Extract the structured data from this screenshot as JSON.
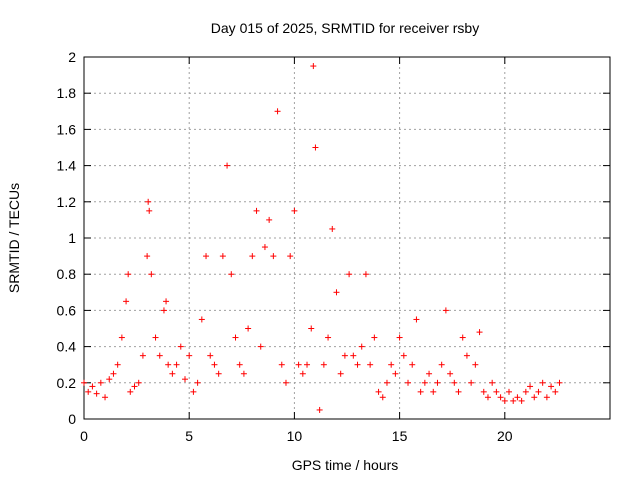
{
  "chart_data": {
    "type": "scatter",
    "title": "Day 015 of 2025, SRMTID for receiver rsby",
    "xlabel": "GPS time / hours",
    "ylabel": "SRMTID / TECUs",
    "xlim": [
      0,
      25
    ],
    "ylim": [
      0,
      2
    ],
    "xticks": [
      0,
      5,
      10,
      15,
      20
    ],
    "xtick_labels": [
      "0",
      "5",
      "10",
      "15",
      "20"
    ],
    "yticks": [
      0,
      0.2,
      0.4,
      0.6,
      0.8,
      1,
      1.2,
      1.4,
      1.6,
      1.8,
      2
    ],
    "ytick_labels": [
      "0",
      "0.2",
      "0.4",
      "0.6",
      "0.8",
      "1",
      "1.2",
      "1.4",
      "1.6",
      "1.8",
      "2"
    ],
    "grid": true,
    "marker": "+",
    "marker_color": "#ff0000",
    "series": [
      {
        "name": "SRMTID",
        "x": [
          0.0,
          0.2,
          0.4,
          0.6,
          0.8,
          1.0,
          1.2,
          1.4,
          1.6,
          1.8,
          2.0,
          2.1,
          2.2,
          2.4,
          2.6,
          2.8,
          3.0,
          3.05,
          3.1,
          3.2,
          3.4,
          3.6,
          3.8,
          3.9,
          4.0,
          4.2,
          4.4,
          4.6,
          4.8,
          5.0,
          5.2,
          5.4,
          5.6,
          5.8,
          6.0,
          6.2,
          6.4,
          6.6,
          6.8,
          7.0,
          7.2,
          7.4,
          7.6,
          7.8,
          8.0,
          8.2,
          8.4,
          8.6,
          8.8,
          9.0,
          9.2,
          9.4,
          9.6,
          9.8,
          10.0,
          10.2,
          10.4,
          10.6,
          10.8,
          10.9,
          11.0,
          11.2,
          11.4,
          11.6,
          11.8,
          12.0,
          12.2,
          12.4,
          12.6,
          12.8,
          13.0,
          13.2,
          13.4,
          13.6,
          13.8,
          14.0,
          14.2,
          14.4,
          14.6,
          14.8,
          15.0,
          15.2,
          15.4,
          15.6,
          15.8,
          16.0,
          16.2,
          16.4,
          16.6,
          16.8,
          17.0,
          17.2,
          17.4,
          17.6,
          17.8,
          18.0,
          18.2,
          18.4,
          18.6,
          18.8,
          19.0,
          19.2,
          19.4,
          19.6,
          19.8,
          20.0,
          20.2,
          20.4,
          20.6,
          20.8,
          21.0,
          21.2,
          21.4,
          21.6,
          21.8,
          22.0,
          22.2,
          22.4,
          22.6
        ],
        "values": [
          0.2,
          0.15,
          0.18,
          0.14,
          0.2,
          0.12,
          0.22,
          0.25,
          0.3,
          0.45,
          0.65,
          0.8,
          0.15,
          0.18,
          0.2,
          0.35,
          0.9,
          1.2,
          1.15,
          0.8,
          0.45,
          0.35,
          0.6,
          0.65,
          0.3,
          0.25,
          0.3,
          0.4,
          0.22,
          0.35,
          0.15,
          0.2,
          0.55,
          0.9,
          0.35,
          0.3,
          0.25,
          0.9,
          1.4,
          0.8,
          0.45,
          0.3,
          0.25,
          0.5,
          0.9,
          1.15,
          0.4,
          0.95,
          1.1,
          0.9,
          1.7,
          0.3,
          0.2,
          0.9,
          1.15,
          0.3,
          0.25,
          0.3,
          0.5,
          1.95,
          1.5,
          0.05,
          0.3,
          0.45,
          1.05,
          0.7,
          0.25,
          0.35,
          0.8,
          0.35,
          0.3,
          0.4,
          0.8,
          0.3,
          0.45,
          0.15,
          0.12,
          0.2,
          0.3,
          0.25,
          0.45,
          0.35,
          0.2,
          0.3,
          0.55,
          0.15,
          0.2,
          0.25,
          0.15,
          0.2,
          0.3,
          0.6,
          0.25,
          0.2,
          0.15,
          0.45,
          0.35,
          0.2,
          0.3,
          0.48,
          0.15,
          0.12,
          0.2,
          0.15,
          0.12,
          0.1,
          0.15,
          0.1,
          0.12,
          0.1,
          0.15,
          0.18,
          0.12,
          0.15,
          0.2,
          0.12,
          0.18,
          0.15,
          0.2
        ]
      }
    ]
  }
}
